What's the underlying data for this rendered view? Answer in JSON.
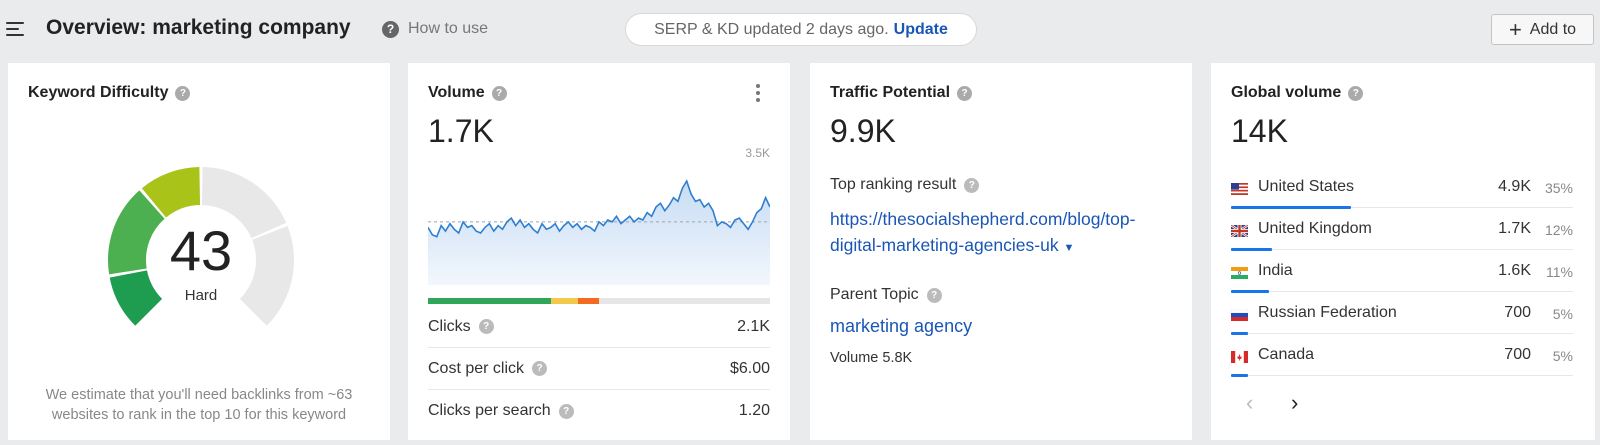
{
  "header": {
    "title": "Overview: marketing company",
    "how_to_use": "How to use",
    "serp_status": "SERP & KD updated 2 days ago.",
    "update_label": "Update",
    "add_to_label": "Add to"
  },
  "kd": {
    "title": "Keyword Difficulty",
    "value": "43",
    "level": "Hard",
    "score": 43,
    "note_line1": "We estimate that you'll need backlinks from ~63",
    "note_line2": "websites to rank in the top 10 for this keyword",
    "colors": {
      "segment1": "#1e9d50",
      "segment2": "#4caf50",
      "segment3": "#aac318",
      "track": "#e8e8e8"
    }
  },
  "volume": {
    "title": "Volume",
    "value": "1.7K",
    "chart_max_label": "3.5K",
    "clicks_split": [
      {
        "share": 0.36,
        "color": "#30a65a"
      },
      {
        "share": 0.08,
        "color": "#f2c94c"
      },
      {
        "share": 0.06,
        "color": "#f26b21"
      }
    ],
    "rows": [
      {
        "label": "Clicks",
        "value": "2.1K"
      },
      {
        "label": "Cost per click",
        "value": "$6.00"
      },
      {
        "label": "Clicks per search",
        "value": "1.20"
      }
    ]
  },
  "chart_data": {
    "type": "area",
    "title": "",
    "xlabel": "",
    "ylabel": "",
    "ylim": [
      0,
      3500
    ],
    "average": 1700,
    "series": [
      {
        "values": [
          1550,
          1350,
          1300,
          1600,
          1450,
          1650,
          1500,
          1400,
          1700,
          1550,
          1600,
          1450,
          1400,
          1550,
          1650,
          1450,
          1600,
          1500,
          1700,
          1800,
          1600,
          1750,
          1550,
          1650,
          1500,
          1400,
          1650,
          1500,
          1550,
          1650,
          1450,
          1600,
          1700,
          1550,
          1650,
          1500,
          1600,
          1550,
          1450,
          1700,
          1600,
          1750,
          1700,
          1850,
          1650,
          1750,
          1850,
          1700,
          1800,
          1750,
          1950,
          1850,
          2100,
          2200,
          2000,
          2150,
          2350,
          2250,
          2600,
          2800,
          2450,
          2250,
          2300,
          2100,
          2200,
          2000,
          1600,
          1700,
          1650,
          1550,
          1750,
          1800,
          1650,
          1500,
          1700,
          1950,
          2050,
          2350,
          2100
        ]
      }
    ]
  },
  "traffic": {
    "title": "Traffic Potential",
    "value": "9.9K",
    "top_result_label": "Top ranking result",
    "top_result_url_1": "https://thesocialshepherd.com/blog/top-",
    "top_result_url_2": "digital-marketing-agencies-uk",
    "parent_topic_label": "Parent Topic",
    "parent_topic": "marketing agency",
    "parent_volume": "Volume 5.8K"
  },
  "global": {
    "title": "Global volume",
    "value": "14K",
    "countries": [
      {
        "name": "United States",
        "volume": "4.9K",
        "pct": "35%",
        "share": 0.35,
        "flag": "us-flag-icon"
      },
      {
        "name": "United Kingdom",
        "volume": "1.7K",
        "pct": "12%",
        "share": 0.12,
        "flag": "uk-flag-icon"
      },
      {
        "name": "India",
        "volume": "1.6K",
        "pct": "11%",
        "share": 0.11,
        "flag": "india-flag-icon"
      },
      {
        "name": "Russian Federation",
        "volume": "700",
        "pct": "5%",
        "share": 0.05,
        "flag": "russia-flag-icon"
      },
      {
        "name": "Canada",
        "volume": "700",
        "pct": "5%",
        "share": 0.05,
        "flag": "canada-flag-icon"
      }
    ],
    "prev": "‹",
    "next": "›"
  }
}
